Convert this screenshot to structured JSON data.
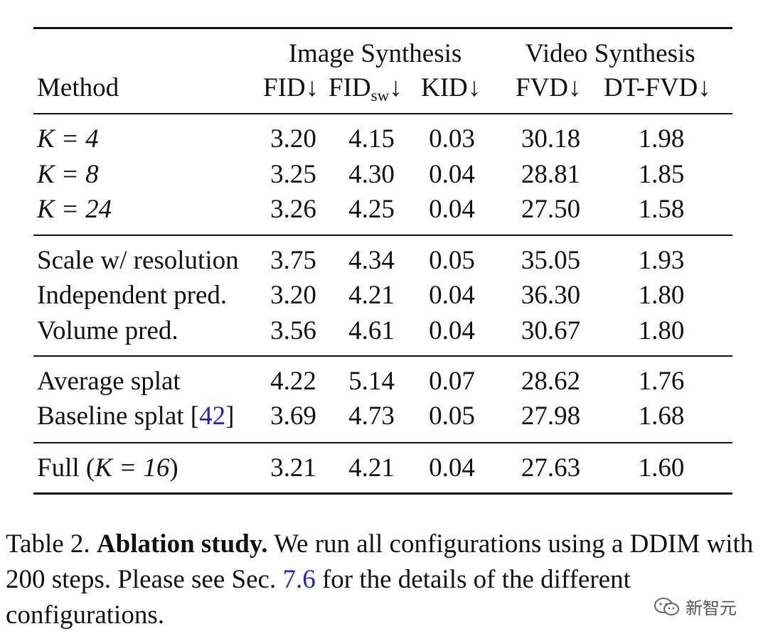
{
  "table": {
    "header": {
      "method": "Method",
      "image_group": "Image Synthesis",
      "video_group": "Video Synthesis",
      "fid": "FID↓",
      "fid_sw_base": "FID",
      "fid_sw_sub": "sw",
      "fid_sw_arrow": "↓",
      "kid": "KID↓",
      "fvd": "FVD↓",
      "dtfvd": "DT-FVD↓"
    },
    "rows": [
      {
        "method": "K = 4",
        "fid": "3.20",
        "fid_sw": "4.15",
        "kid": "0.03",
        "fvd": "30.18",
        "dtfvd": "1.98"
      },
      {
        "method": "K = 8",
        "fid": "3.25",
        "fid_sw": "4.30",
        "kid": "0.04",
        "fvd": "28.81",
        "dtfvd": "1.85"
      },
      {
        "method": "K = 24",
        "fid": "3.26",
        "fid_sw": "4.25",
        "kid": "0.04",
        "fvd": "27.50",
        "dtfvd": "1.58"
      },
      {
        "method": "Scale w/ resolution",
        "fid": "3.75",
        "fid_sw": "4.34",
        "kid": "0.05",
        "fvd": "35.05",
        "dtfvd": "1.93"
      },
      {
        "method": "Independent pred.",
        "fid": "3.20",
        "fid_sw": "4.21",
        "kid": "0.04",
        "fvd": "36.30",
        "dtfvd": "1.80"
      },
      {
        "method": "Volume pred.",
        "fid": "3.56",
        "fid_sw": "4.61",
        "kid": "0.04",
        "fvd": "30.67",
        "dtfvd": "1.80"
      },
      {
        "method": "Average splat",
        "fid": "4.22",
        "fid_sw": "5.14",
        "kid": "0.07",
        "fvd": "28.62",
        "dtfvd": "1.76"
      },
      {
        "method": "Baseline splat",
        "method_ref": "42",
        "fid": "3.69",
        "fid_sw": "4.73",
        "kid": "0.05",
        "fvd": "27.98",
        "dtfvd": "1.68"
      },
      {
        "method_pre": "Full (",
        "method_math": "K = 16",
        "method_post": ")",
        "fid": "3.21",
        "fid_sw": "4.21",
        "kid": "0.04",
        "fvd": "27.63",
        "dtfvd": "1.60"
      }
    ]
  },
  "caption": {
    "label": "Table 2.",
    "title": "Ablation study.",
    "text1": "We run all configurations using a DDIM with 200 steps. Please see Sec.",
    "link": "7.6",
    "text2": "for the details of the different configurations."
  },
  "watermark": {
    "text": "新智元",
    "icon": "wechat-icon"
  },
  "colors": {
    "link": "#2323c8",
    "text": "#111111"
  }
}
